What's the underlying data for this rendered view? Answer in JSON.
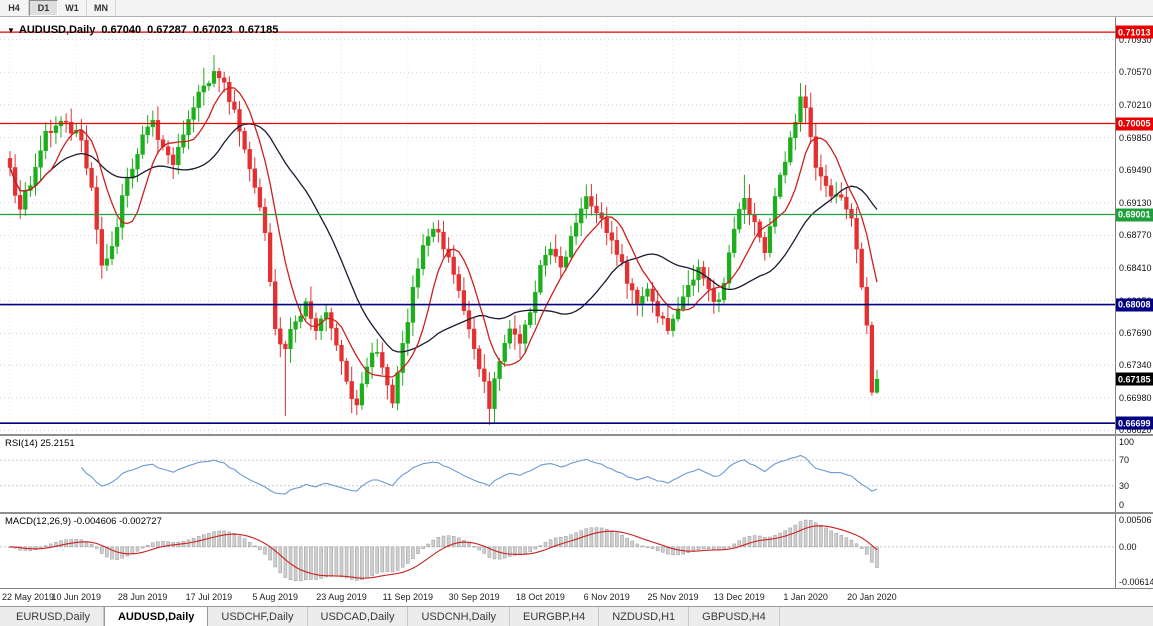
{
  "toolbar": {
    "buttons": [
      {
        "label": "H4",
        "active": false
      },
      {
        "label": "D1",
        "active": true
      },
      {
        "label": "W1",
        "active": false
      },
      {
        "label": "MN",
        "active": false
      }
    ]
  },
  "chart_data": {
    "type": "candlestick",
    "symbol": "AUDUSD",
    "timeframe": "Daily",
    "title": {
      "marker": "▼",
      "symbol": "AUDUSD,Daily",
      "open": "0.67040",
      "high": "0.67287",
      "low": "0.67023",
      "close": "0.67185"
    },
    "last_candle": {
      "open": 0.6704,
      "high": 0.67287,
      "low": 0.67023,
      "close": 0.67185
    },
    "y_axis": {
      "min": 0.6658,
      "max": 0.7118,
      "ticks": [
        "0.70930",
        "0.70570",
        "0.70210",
        "0.69850",
        "0.69490",
        "0.69130",
        "0.68770",
        "0.68410",
        "0.68050",
        "0.67690",
        "0.67340",
        "0.66980",
        "0.66620"
      ]
    },
    "x_axis": {
      "labels": [
        "22 May 2019",
        "10 Jun 2019",
        "28 Jun 2019",
        "17 Jul 2019",
        "5 Aug 2019",
        "23 Aug 2019",
        "11 Sep 2019",
        "30 Sep 2019",
        "18 Oct 2019",
        "6 Nov 2019",
        "25 Nov 2019",
        "13 Dec 2019",
        "1 Jan 2020",
        "20 Jan 2020"
      ],
      "label_step": 13
    },
    "candle_count": 171,
    "close_anchors": [
      [
        0,
        0.6952
      ],
      [
        2,
        0.6906
      ],
      [
        4,
        0.6932
      ],
      [
        7,
        0.6992
      ],
      [
        11,
        0.7002
      ],
      [
        14,
        0.6982
      ],
      [
        16,
        0.693
      ],
      [
        18,
        0.6844
      ],
      [
        20,
        0.6865
      ],
      [
        23,
        0.694
      ],
      [
        26,
        0.6988
      ],
      [
        28,
        0.7004
      ],
      [
        30,
        0.6975
      ],
      [
        32,
        0.6955
      ],
      [
        34,
        0.6988
      ],
      [
        36,
        0.7018
      ],
      [
        38,
        0.7042
      ],
      [
        40,
        0.7058
      ],
      [
        42,
        0.7046
      ],
      [
        44,
        0.7016
      ],
      [
        46,
        0.6972
      ],
      [
        48,
        0.693
      ],
      [
        50,
        0.688
      ],
      [
        51,
        0.6826
      ],
      [
        52,
        0.6774
      ],
      [
        54,
        0.6752
      ],
      [
        56,
        0.6782
      ],
      [
        58,
        0.6804
      ],
      [
        60,
        0.6772
      ],
      [
        62,
        0.6792
      ],
      [
        64,
        0.6756
      ],
      [
        66,
        0.6716
      ],
      [
        68,
        0.669
      ],
      [
        70,
        0.6732
      ],
      [
        72,
        0.6748
      ],
      [
        74,
        0.6712
      ],
      [
        75,
        0.6692
      ],
      [
        77,
        0.6758
      ],
      [
        79,
        0.682
      ],
      [
        81,
        0.6866
      ],
      [
        83,
        0.6884
      ],
      [
        85,
        0.6862
      ],
      [
        87,
        0.6834
      ],
      [
        89,
        0.6794
      ],
      [
        91,
        0.6752
      ],
      [
        93,
        0.6716
      ],
      [
        94,
        0.6686
      ],
      [
        96,
        0.6738
      ],
      [
        98,
        0.6774
      ],
      [
        100,
        0.6758
      ],
      [
        102,
        0.6792
      ],
      [
        104,
        0.6844
      ],
      [
        106,
        0.6862
      ],
      [
        108,
        0.6842
      ],
      [
        110,
        0.6876
      ],
      [
        113,
        0.692
      ],
      [
        115,
        0.6902
      ],
      [
        117,
        0.688
      ],
      [
        119,
        0.6856
      ],
      [
        121,
        0.6824
      ],
      [
        123,
        0.6802
      ],
      [
        125,
        0.6818
      ],
      [
        127,
        0.6788
      ],
      [
        129,
        0.6772
      ],
      [
        131,
        0.6796
      ],
      [
        133,
        0.6822
      ],
      [
        135,
        0.6842
      ],
      [
        137,
        0.6818
      ],
      [
        139,
        0.6806
      ],
      [
        141,
        0.6858
      ],
      [
        144,
        0.6918
      ],
      [
        146,
        0.6892
      ],
      [
        148,
        0.6858
      ],
      [
        150,
        0.692
      ],
      [
        152,
        0.6958
      ],
      [
        154,
        0.7002
      ],
      [
        155,
        0.703
      ],
      [
        156,
        0.7018
      ],
      [
        158,
        0.6952
      ],
      [
        160,
        0.6932
      ],
      [
        162,
        0.6922
      ],
      [
        164,
        0.6906
      ],
      [
        165,
        0.6896
      ],
      [
        166,
        0.6862
      ],
      [
        167,
        0.682
      ],
      [
        168,
        0.6778
      ],
      [
        169,
        0.6704
      ],
      [
        170,
        0.67185
      ]
    ],
    "special_wicks": [
      [
        38,
        "h",
        0.7062
      ],
      [
        40,
        "h",
        0.7076
      ],
      [
        54,
        "l",
        0.6678
      ],
      [
        94,
        "l",
        0.6668
      ],
      [
        144,
        "h",
        0.6944
      ],
      [
        155,
        "h",
        0.7042
      ]
    ],
    "price_lines": [
      {
        "label": "0.71013",
        "value": 0.71013,
        "color": "#E60000"
      },
      {
        "label": "0.70005",
        "value": 0.70005,
        "color": "#E60000"
      },
      {
        "label": "0.69001",
        "value": 0.69001,
        "color": "#1FA03C"
      },
      {
        "label": "0.68008",
        "value": 0.68008,
        "color": "#000080"
      },
      {
        "label": "0.66699",
        "value": 0.66699,
        "color": "#000080"
      }
    ],
    "current_price": {
      "label": "0.67185",
      "value": 0.67185,
      "color": "#000000"
    },
    "colors": {
      "bull": "#1CAE1C",
      "bear": "#E43030",
      "ma_fast": "#CC2020",
      "ma_slow": "#1A1A30",
      "grid": "#D4D4D4"
    },
    "ma_fast_period": 8,
    "ma_slow_period": 24
  },
  "rsi_pane": {
    "label": "RSI(14) 25.2151",
    "period": 14,
    "current": 25.2151,
    "line_color": "#6B9BD2",
    "levels": [
      {
        "label": "100",
        "value": 100
      },
      {
        "label": "70",
        "value": 70
      },
      {
        "label": "30",
        "value": 30
      },
      {
        "label": "0",
        "value": 0
      }
    ]
  },
  "macd_pane": {
    "label": "MACD(12,26,9) -0.004606 -0.002727",
    "fast": 12,
    "slow": 26,
    "signal": 9,
    "macd_value": -0.004606,
    "signal_value": -0.002727,
    "histogram_color": "#CFCFCF",
    "signal_color": "#CC2020",
    "scale": {
      "min": -0.00614,
      "max": 0.00506
    },
    "levels": [
      {
        "label": "0.00506",
        "value": 0.00506
      },
      {
        "label": "0.00",
        "value": 0
      },
      {
        "label": "-0.00614",
        "value": -0.00614
      }
    ]
  },
  "tabs": [
    {
      "label": "EURUSD,Daily",
      "active": false
    },
    {
      "label": "AUDUSD,Daily",
      "active": true
    },
    {
      "label": "USDCHF,Daily",
      "active": false
    },
    {
      "label": "USDCAD,Daily",
      "active": false
    },
    {
      "label": "USDCNH,Daily",
      "active": false
    },
    {
      "label": "EURGBP,H4",
      "active": false
    },
    {
      "label": "NZDUSD,H1",
      "active": false
    },
    {
      "label": "GBPUSD,H4",
      "active": false
    }
  ]
}
